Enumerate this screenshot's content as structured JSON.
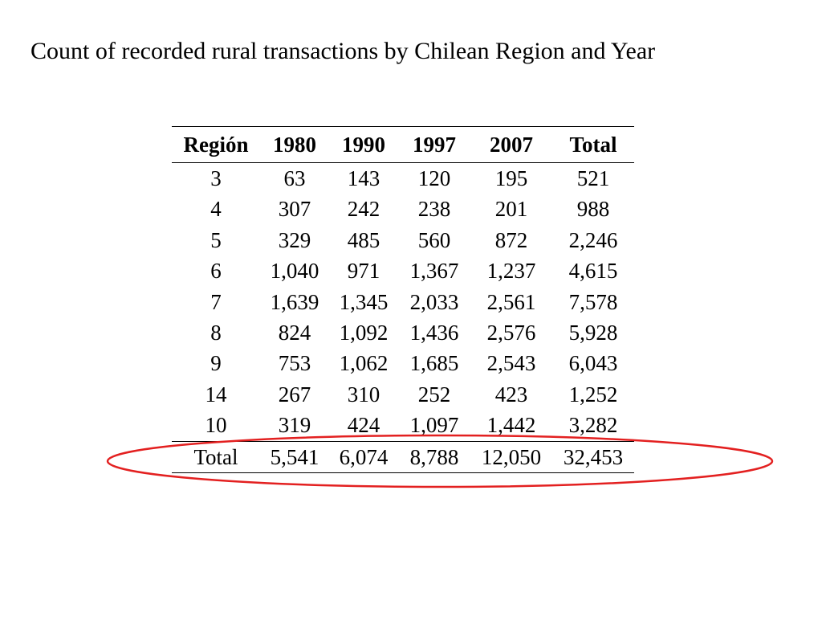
{
  "title": "Count of recorded rural transactions by Chilean Region and Year",
  "table": {
    "headers": [
      "Región",
      "1980",
      "1990",
      "1997",
      "2007",
      "Total"
    ],
    "rows": [
      [
        "3",
        "63",
        "143",
        "120",
        "195",
        "521"
      ],
      [
        "4",
        "307",
        "242",
        "238",
        "201",
        "988"
      ],
      [
        "5",
        "329",
        "485",
        "560",
        "872",
        "2,246"
      ],
      [
        "6",
        "1,040",
        "971",
        "1,367",
        "1,237",
        "4,615"
      ],
      [
        "7",
        "1,639",
        "1,345",
        "2,033",
        "2,561",
        "7,578"
      ],
      [
        "8",
        "824",
        "1,092",
        "1,436",
        "2,576",
        "5,928"
      ],
      [
        "9",
        "753",
        "1,062",
        "1,685",
        "2,543",
        "6,043"
      ],
      [
        "14",
        "267",
        "310",
        "252",
        "423",
        "1,252"
      ],
      [
        "10",
        "319",
        "424",
        "1,097",
        "1,442",
        "3,282"
      ]
    ],
    "total_row": [
      "Total",
      "5,541",
      "6,074",
      "8,788",
      "12,050",
      "32,453"
    ]
  },
  "highlight": {
    "shape": "ellipse",
    "color": "#e32020",
    "target": "total-row"
  }
}
